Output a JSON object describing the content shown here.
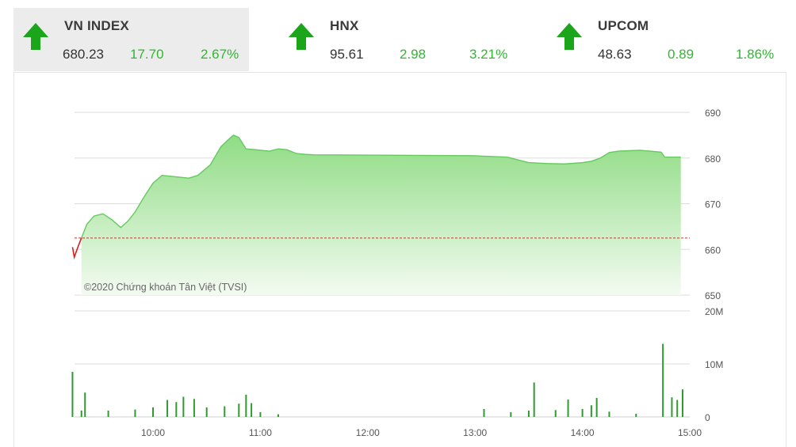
{
  "tickers": [
    {
      "name": "VN INDEX",
      "value": "680.23",
      "change": "17.70",
      "percent": "2.67%",
      "direction": "up",
      "active": true
    },
    {
      "name": "HNX",
      "value": "95.61",
      "change": "2.98",
      "percent": "3.21%",
      "direction": "up",
      "active": false
    },
    {
      "name": "UPCOM",
      "value": "48.63",
      "change": "0.89",
      "percent": "1.86%",
      "direction": "up",
      "active": false
    }
  ],
  "colors": {
    "up": "#1aa51a",
    "positive_text": "#2fb82f",
    "area_line": "#66c95f",
    "area_fill_top": "#8fdc84",
    "area_fill_bottom": "#f3fbf1",
    "below_ref_line": "#d62020",
    "ref_line": "#c0392b",
    "volume_bar": "#2f9a2f",
    "grid": "#dddddd"
  },
  "chart_data": [
    {
      "type": "area",
      "reference_value": 662.5,
      "ylim": [
        650,
        690
      ],
      "yticks": [
        650,
        660,
        670,
        680,
        690
      ],
      "xlim": [
        "09:15",
        "15:00"
      ],
      "xticks": [
        "10:00",
        "11:00",
        "12:00",
        "13:00",
        "14:00",
        "15:00"
      ],
      "grid": true,
      "watermark": "©2020 Chứng khoán Tân Việt (TVSI)",
      "series": [
        {
          "points": [
            [
              "09:15",
              660.5
            ],
            [
              "09:16",
              658.3
            ],
            [
              "09:18",
              660.5
            ],
            [
              "09:20",
              662.5
            ],
            [
              "09:23",
              665.5
            ],
            [
              "09:27",
              667.3
            ],
            [
              "09:32",
              667.8
            ],
            [
              "09:37",
              666.5
            ],
            [
              "09:42",
              664.8
            ],
            [
              "09:46",
              666.2
            ],
            [
              "09:50",
              668.2
            ],
            [
              "09:55",
              671.5
            ],
            [
              "10:00",
              674.5
            ],
            [
              "10:05",
              676.2
            ],
            [
              "10:10",
              676.0
            ],
            [
              "10:20",
              675.6
            ],
            [
              "10:25",
              676.2
            ],
            [
              "10:32",
              678.5
            ],
            [
              "10:38",
              682.5
            ],
            [
              "10:42",
              684.0
            ],
            [
              "10:45",
              685.0
            ],
            [
              "10:48",
              684.5
            ],
            [
              "10:52",
              682.0
            ],
            [
              "10:58",
              681.8
            ],
            [
              "11:05",
              681.5
            ],
            [
              "11:10",
              682.0
            ],
            [
              "11:15",
              681.8
            ],
            [
              "11:20",
              681.0
            ],
            [
              "11:25",
              680.8
            ],
            [
              "11:30",
              680.7
            ],
            [
              "12:59",
              680.5
            ],
            [
              "13:05",
              680.4
            ],
            [
              "13:12",
              680.3
            ],
            [
              "13:18",
              680.2
            ],
            [
              "13:25",
              679.5
            ],
            [
              "13:30",
              679.0
            ],
            [
              "13:40",
              678.8
            ],
            [
              "13:50",
              678.7
            ],
            [
              "14:00",
              679.0
            ],
            [
              "14:05",
              679.3
            ],
            [
              "14:10",
              680.0
            ],
            [
              "14:15",
              681.2
            ],
            [
              "14:20",
              681.5
            ],
            [
              "14:26",
              681.6
            ],
            [
              "14:32",
              681.7
            ],
            [
              "14:38",
              681.5
            ],
            [
              "14:44",
              681.3
            ],
            [
              "14:46",
              680.2
            ],
            [
              "14:55",
              680.2
            ]
          ]
        }
      ]
    },
    {
      "type": "bar",
      "title": "",
      "ylim": [
        0,
        20000000
      ],
      "yticks": [
        "0",
        "10M",
        "20M"
      ],
      "xlim": [
        "09:15",
        "15:00"
      ],
      "grid": true,
      "series": [
        {
          "points": [
            [
              "09:15",
              8500000
            ],
            [
              "09:20",
              1200000
            ],
            [
              "09:22",
              4600000
            ],
            [
              "09:35",
              1200000
            ],
            [
              "09:50",
              1400000
            ],
            [
              "10:00",
              1800000
            ],
            [
              "10:08",
              3200000
            ],
            [
              "10:13",
              2800000
            ],
            [
              "10:17",
              3800000
            ],
            [
              "10:23",
              3400000
            ],
            [
              "10:30",
              1800000
            ],
            [
              "10:40",
              2000000
            ],
            [
              "10:48",
              2500000
            ],
            [
              "10:52",
              4200000
            ],
            [
              "10:55",
              2600000
            ],
            [
              "11:00",
              900000
            ],
            [
              "11:10",
              500000
            ],
            [
              "13:05",
              1500000
            ],
            [
              "13:20",
              900000
            ],
            [
              "13:30",
              1200000
            ],
            [
              "13:33",
              6500000
            ],
            [
              "13:45",
              1300000
            ],
            [
              "13:52",
              3300000
            ],
            [
              "14:00",
              1500000
            ],
            [
              "14:05",
              2200000
            ],
            [
              "14:08",
              3600000
            ],
            [
              "14:15",
              1000000
            ],
            [
              "14:30",
              600000
            ],
            [
              "14:45",
              13800000
            ],
            [
              "14:50",
              3700000
            ],
            [
              "14:53",
              3200000
            ],
            [
              "14:56",
              5200000
            ]
          ]
        }
      ]
    }
  ]
}
